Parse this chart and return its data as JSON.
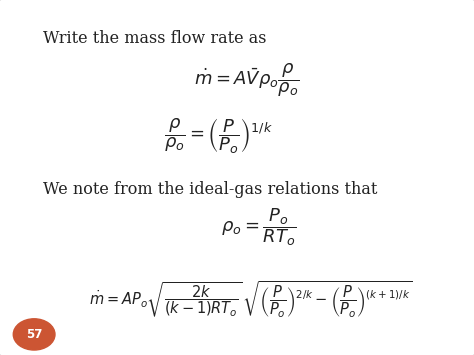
{
  "background_color": "#e8e8e8",
  "slide_bg": "#ffffff",
  "slide_edge": "#c8c8c8",
  "title_text": "Write the mass flow rate as",
  "note_text": "We note from the ideal-gas relations that",
  "eq1": "$\\dot{m} = A\\bar{V}\\rho_o \\dfrac{\\rho}{\\rho_o}$",
  "eq2": "$\\dfrac{\\rho}{\\rho_o} = \\left(\\dfrac{P}{P_o}\\right)^{1/k}$",
  "eq3": "$\\rho_o = \\dfrac{P_o}{RT_o}$",
  "eq4": "$\\dot{m} = AP_o\\sqrt{\\dfrac{2k}{(k-1)RT_o}}\\,\\sqrt{\\left(\\dfrac{P}{P_o}\\right)^{2/k} - \\left(\\dfrac{P}{P_o}\\right)^{(k+1)/k}}$",
  "page_num": "57",
  "page_circle_color": "#cc5533",
  "page_text_color": "#ffffff",
  "text_color": "#222222",
  "font_size_text": 11.5,
  "font_size_eq1": 13,
  "font_size_eq2": 13,
  "font_size_eq3": 13,
  "font_size_eq4": 10.5
}
